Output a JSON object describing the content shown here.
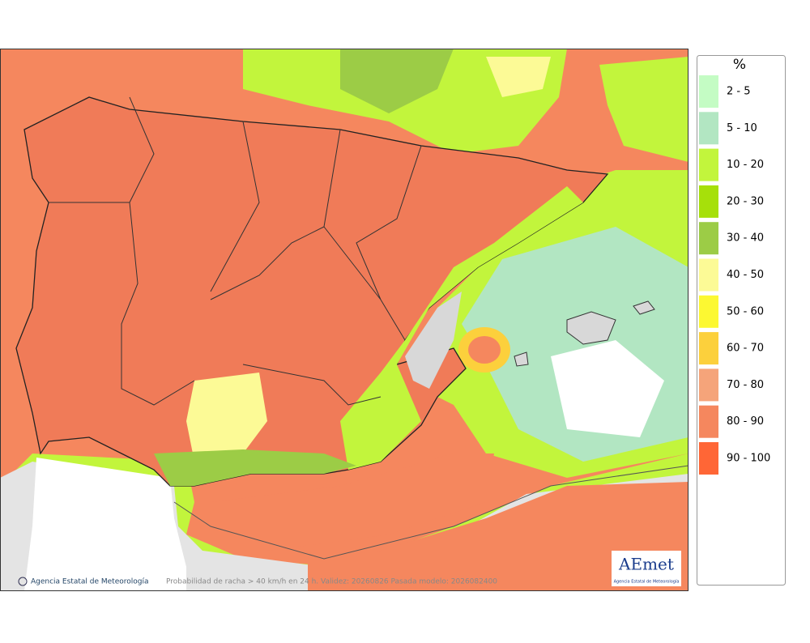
{
  "legend": {
    "title": "%",
    "items": [
      {
        "label": "2 - 5",
        "color": "#c4fcc4"
      },
      {
        "label": "5 - 10",
        "color": "#b2e6c2"
      },
      {
        "label": "10 - 20",
        "color": "#c2f53c"
      },
      {
        "label": "20 - 30",
        "color": "#a6e00a"
      },
      {
        "label": "30 - 40",
        "color": "#9ccc46"
      },
      {
        "label": "40 - 50",
        "color": "#fcfa96"
      },
      {
        "label": "50 - 60",
        "color": "#fcf832"
      },
      {
        "label": "60 - 70",
        "color": "#fcd03c"
      },
      {
        "label": "70 - 80",
        "color": "#f5a47a"
      },
      {
        "label": "80 - 90",
        "color": "#f5875e"
      },
      {
        "label": "90 - 100",
        "color": "#ff6636"
      }
    ]
  },
  "footer": {
    "copyright": "Agencia Estatal de Meteorología",
    "caption": "Probabilidad de racha > 40 km/h en 24 h. Validez: 20260826 Pasada modelo: 2026082400"
  },
  "logo": {
    "name": "AEmet",
    "subtitle": "Agencia Estatal de Meteorología"
  }
}
